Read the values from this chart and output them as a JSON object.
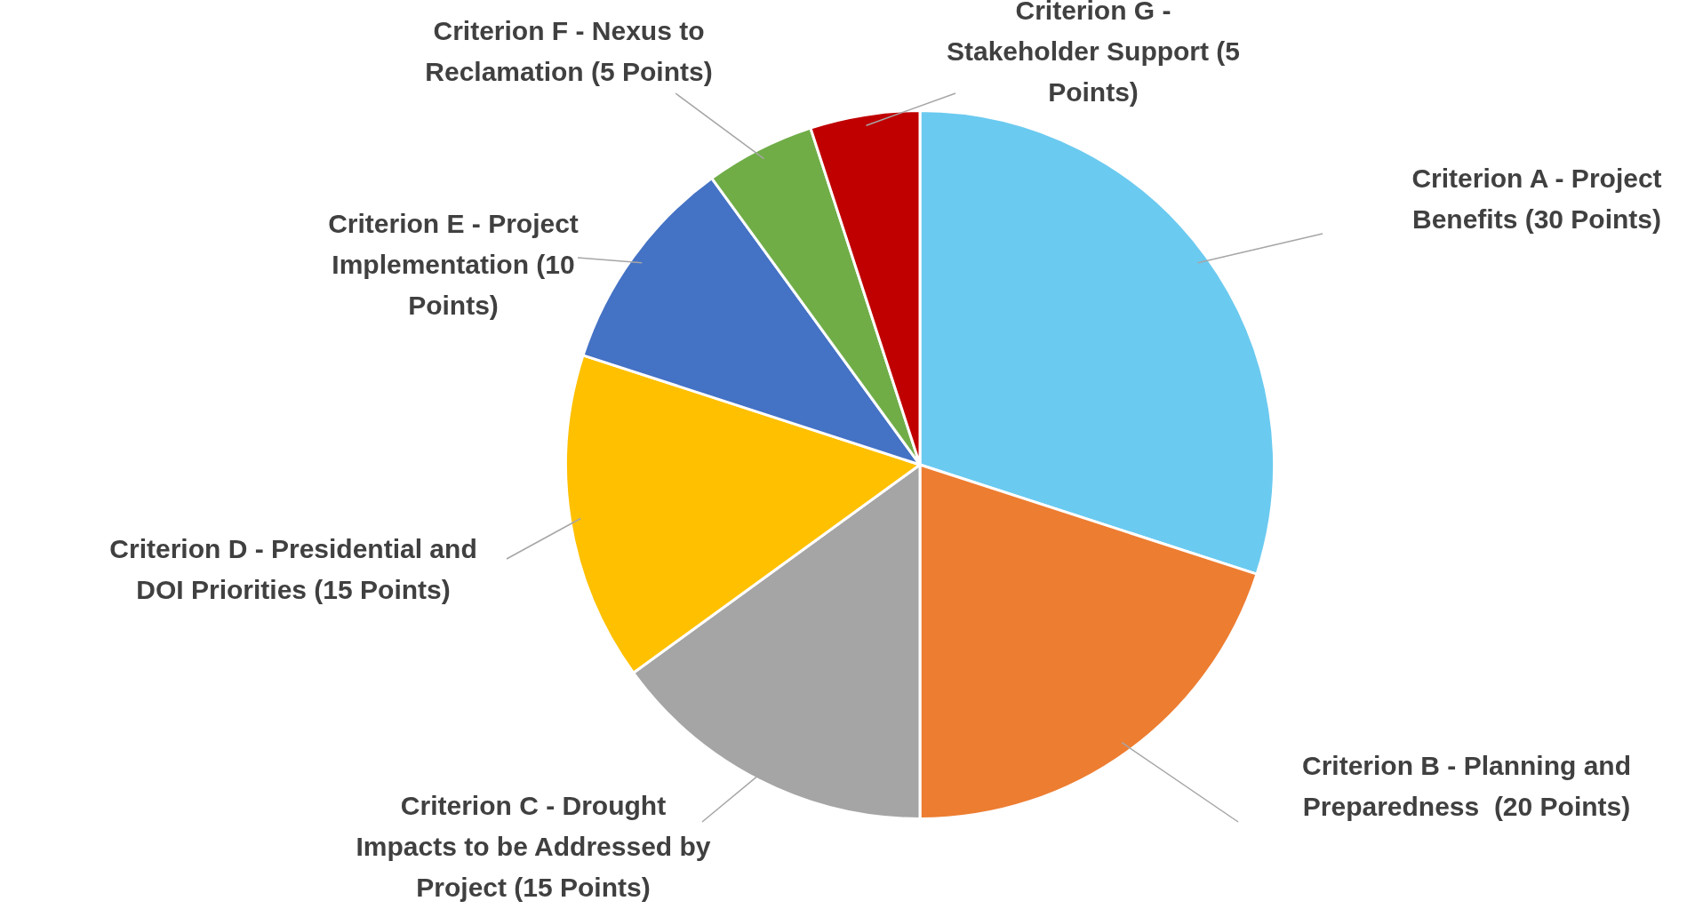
{
  "chart_data": {
    "type": "pie",
    "categories": [
      "Criterion A - Project Benefits (30 Points)",
      "Criterion B - Planning and Preparedness  (20 Points)",
      "Criterion C - Drought Impacts to be Addressed by Project (15 Points)",
      "Criterion D - Presidential and DOI Priorities (15 Points)",
      "Criterion E - Project Implementation (10 Points)",
      "Criterion F - Nexus to Reclamation (5 Points)",
      "Criterion G - Stakeholder Support (5 Points)"
    ],
    "values": [
      30,
      20,
      15,
      15,
      10,
      5,
      5
    ],
    "colors": [
      "#6bcaf0",
      "#ed7d31",
      "#a5a5a5",
      "#ffc000",
      "#4472c4",
      "#70ad47",
      "#c00000"
    ],
    "legend": false
  }
}
